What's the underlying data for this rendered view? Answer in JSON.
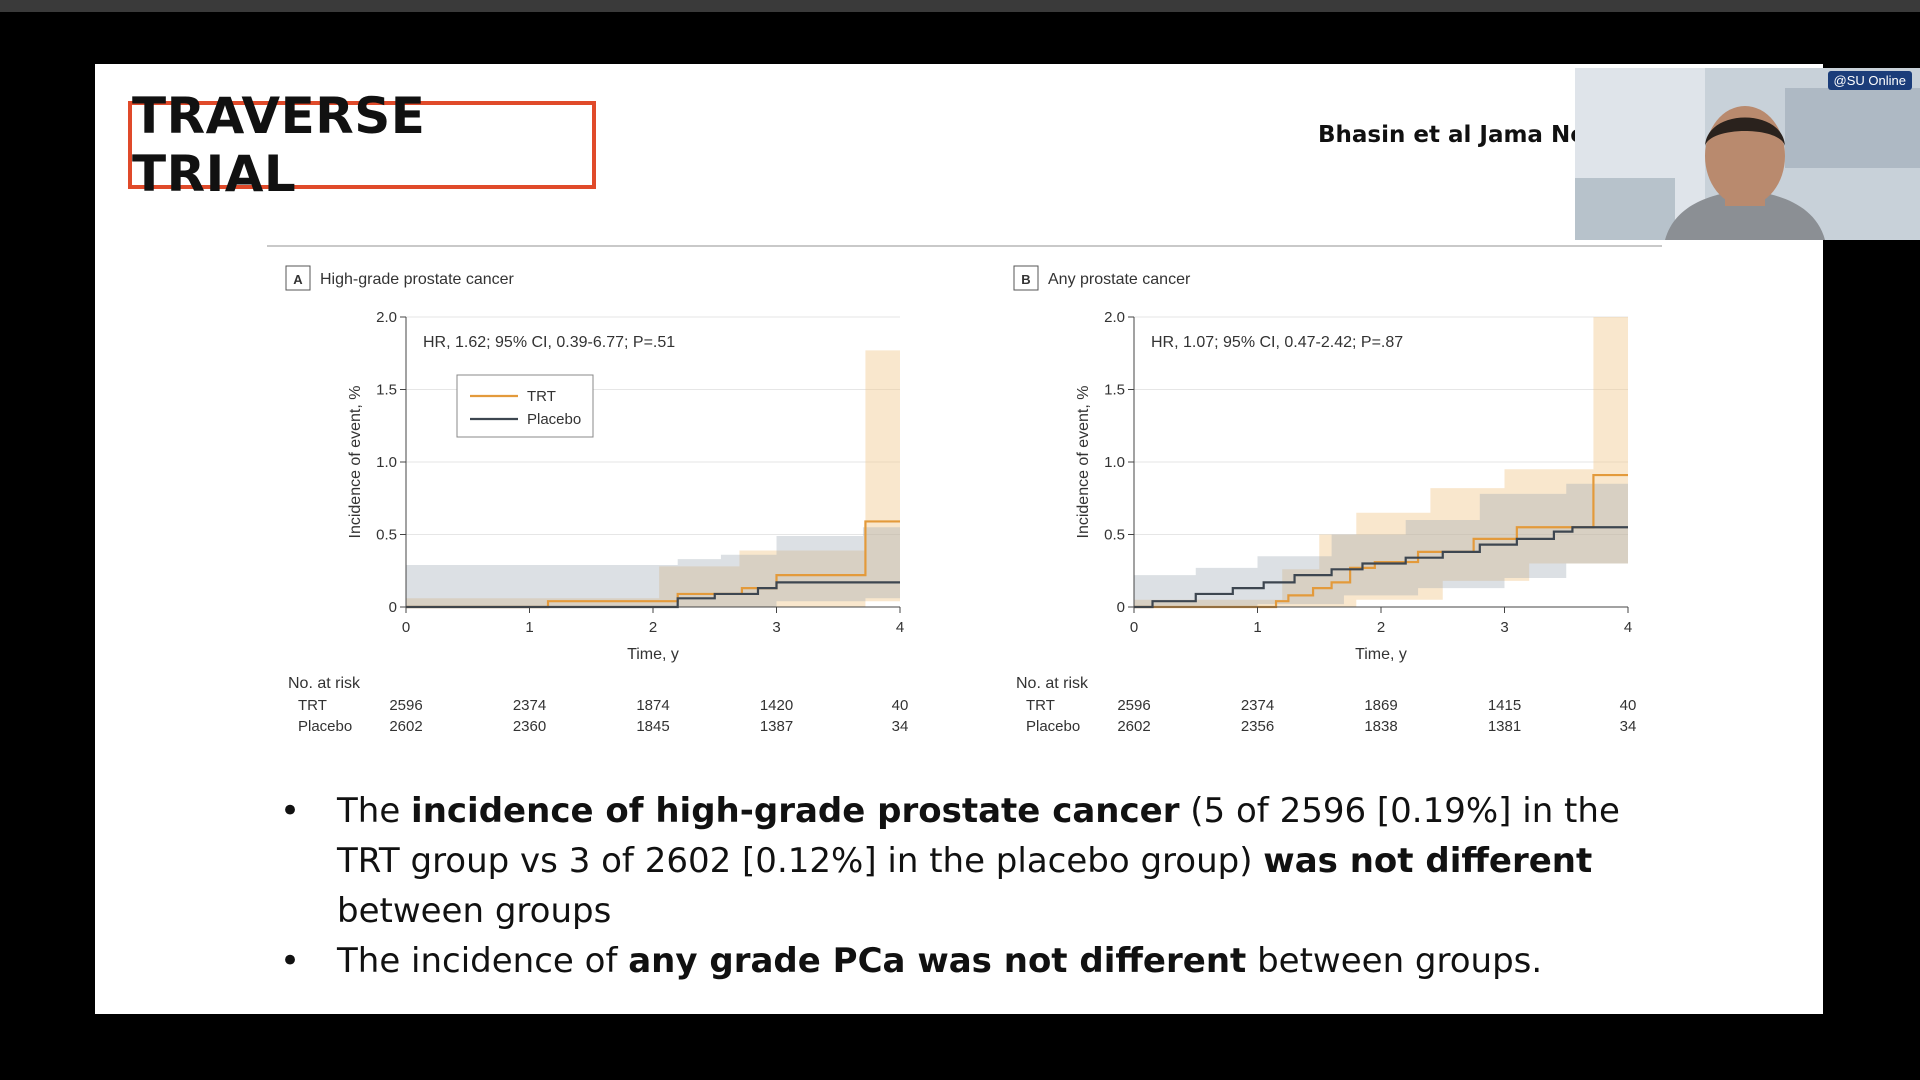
{
  "slide": {
    "title": "TRAVERSE TRIAL",
    "citation": "Bhasin et al Jama Net"
  },
  "webcam": {
    "badge": "@SU Online"
  },
  "bullets": [
    {
      "parts": [
        {
          "text": "The ",
          "bold": false
        },
        {
          "text": "incidence of high-grade prostate cancer",
          "bold": true
        },
        {
          "text": " (5 of 2596 [0.19%] in the TRT group vs 3 of 2602 [0.12%] in the placebo group) ",
          "bold": false
        },
        {
          "text": "was not different",
          "bold": true
        },
        {
          "text": " between groups",
          "bold": false
        }
      ]
    },
    {
      "parts": [
        {
          "text": "The incidence of ",
          "bold": false
        },
        {
          "text": "any grade PCa was not different",
          "bold": true
        },
        {
          "text": " between groups.",
          "bold": false
        }
      ]
    }
  ],
  "chart_data": [
    {
      "type": "line",
      "panel_letter": "A",
      "title": "High-grade prostate cancer",
      "annotation": "HR, 1.62; 95% CI, 0.39-6.77; P=.51",
      "xlabel": "Time, y",
      "ylabel": "Incidence of event, %",
      "xlim": [
        0,
        4
      ],
      "ylim": [
        0,
        2.0
      ],
      "x_ticks": [
        "0",
        "1",
        "2",
        "3",
        "4"
      ],
      "y_ticks": [
        "0",
        "0.5",
        "1.0",
        "1.5",
        "2.0"
      ],
      "grid": true,
      "legend": {
        "placement": "upper-left",
        "entries": [
          "TRT",
          "Placebo"
        ]
      },
      "series": [
        {
          "name": "TRT",
          "color": "#e39a3b",
          "steps": [
            [
              0,
              0
            ],
            [
              1.15,
              0.04
            ],
            [
              2.05,
              0.04
            ],
            [
              2.2,
              0.09
            ],
            [
              2.72,
              0.13
            ],
            [
              3.0,
              0.22
            ],
            [
              3.72,
              0.59
            ],
            [
              4.0,
              0.59
            ]
          ],
          "ci_upper": [
            [
              0,
              0.06
            ],
            [
              1.15,
              0.06
            ],
            [
              2.05,
              0.28
            ],
            [
              2.7,
              0.39
            ],
            [
              3.72,
              1.77
            ],
            [
              4.0,
              1.77
            ]
          ],
          "ci_lower": [
            [
              0,
              0
            ],
            [
              3.72,
              0.04
            ],
            [
              4.0,
              0.04
            ]
          ]
        },
        {
          "name": "Placebo",
          "color": "#3d4650",
          "steps": [
            [
              0,
              0
            ],
            [
              2.05,
              0
            ],
            [
              2.2,
              0.06
            ],
            [
              2.5,
              0.09
            ],
            [
              2.85,
              0.13
            ],
            [
              3.0,
              0.17
            ],
            [
              4.0,
              0.17
            ]
          ],
          "ci_upper": [
            [
              0,
              0.29
            ],
            [
              2.2,
              0.33
            ],
            [
              2.55,
              0.36
            ],
            [
              3.0,
              0.49
            ],
            [
              3.7,
              0.55
            ],
            [
              4.0,
              0.55
            ]
          ],
          "ci_lower": [
            [
              0,
              0
            ],
            [
              2.3,
              0
            ],
            [
              3.0,
              0.04
            ],
            [
              3.72,
              0.06
            ],
            [
              4.0,
              0.06
            ]
          ]
        }
      ],
      "risk_table": {
        "label": "No. at risk",
        "times": [
          0,
          1,
          2,
          3,
          4
        ],
        "rows": [
          {
            "name": "TRT",
            "values": [
              "2596",
              "2374",
              "1874",
              "1420",
              "40"
            ]
          },
          {
            "name": "Placebo",
            "values": [
              "2602",
              "2360",
              "1845",
              "1387",
              "34"
            ]
          }
        ]
      }
    },
    {
      "type": "line",
      "panel_letter": "B",
      "title": "Any prostate cancer",
      "annotation": "HR, 1.07; 95% CI, 0.47-2.42; P=.87",
      "xlabel": "Time, y",
      "ylabel": "Incidence of event, %",
      "xlim": [
        0,
        4
      ],
      "ylim": [
        0,
        2.0
      ],
      "x_ticks": [
        "0",
        "1",
        "2",
        "3",
        "4"
      ],
      "y_ticks": [
        "0",
        "0.5",
        "1.0",
        "1.5",
        "2.0"
      ],
      "grid": true,
      "series": [
        {
          "name": "TRT",
          "color": "#e39a3b",
          "steps": [
            [
              0,
              0
            ],
            [
              1.15,
              0.04
            ],
            [
              1.25,
              0.08
            ],
            [
              1.45,
              0.13
            ],
            [
              1.6,
              0.17
            ],
            [
              1.75,
              0.27
            ],
            [
              1.95,
              0.31
            ],
            [
              2.3,
              0.38
            ],
            [
              2.75,
              0.47
            ],
            [
              3.1,
              0.55
            ],
            [
              3.72,
              0.91
            ],
            [
              4.0,
              0.91
            ]
          ],
          "ci_upper": [
            [
              0,
              0.05
            ],
            [
              1.2,
              0.26
            ],
            [
              1.5,
              0.5
            ],
            [
              1.8,
              0.65
            ],
            [
              2.4,
              0.82
            ],
            [
              3.0,
              0.95
            ],
            [
              3.72,
              2.0
            ],
            [
              4.0,
              2.0
            ]
          ],
          "ci_lower": [
            [
              0,
              0
            ],
            [
              1.8,
              0.05
            ],
            [
              2.5,
              0.18
            ],
            [
              3.2,
              0.3
            ],
            [
              4.0,
              0.3
            ]
          ]
        },
        {
          "name": "Placebo",
          "color": "#3d4650",
          "steps": [
            [
              0,
              0
            ],
            [
              0.15,
              0.04
            ],
            [
              0.5,
              0.09
            ],
            [
              0.8,
              0.13
            ],
            [
              1.05,
              0.17
            ],
            [
              1.3,
              0.22
            ],
            [
              1.6,
              0.26
            ],
            [
              1.85,
              0.3
            ],
            [
              2.2,
              0.34
            ],
            [
              2.5,
              0.38
            ],
            [
              2.8,
              0.43
            ],
            [
              3.1,
              0.47
            ],
            [
              3.4,
              0.52
            ],
            [
              3.55,
              0.55
            ],
            [
              4.0,
              0.55
            ]
          ],
          "ci_upper": [
            [
              0,
              0.22
            ],
            [
              0.5,
              0.27
            ],
            [
              1.0,
              0.35
            ],
            [
              1.6,
              0.5
            ],
            [
              2.2,
              0.6
            ],
            [
              2.8,
              0.78
            ],
            [
              3.5,
              0.85
            ],
            [
              4.0,
              0.85
            ]
          ],
          "ci_lower": [
            [
              0,
              0
            ],
            [
              1.0,
              0.02
            ],
            [
              1.7,
              0.08
            ],
            [
              2.3,
              0.13
            ],
            [
              3.0,
              0.2
            ],
            [
              3.5,
              0.3
            ],
            [
              4.0,
              0.3
            ]
          ]
        }
      ],
      "risk_table": {
        "label": "No. at risk",
        "times": [
          0,
          1,
          2,
          3,
          4
        ],
        "rows": [
          {
            "name": "TRT",
            "values": [
              "2596",
              "2374",
              "1869",
              "1415",
              "40"
            ]
          },
          {
            "name": "Placebo",
            "values": [
              "2602",
              "2356",
              "1838",
              "1381",
              "34"
            ]
          }
        ]
      }
    }
  ]
}
